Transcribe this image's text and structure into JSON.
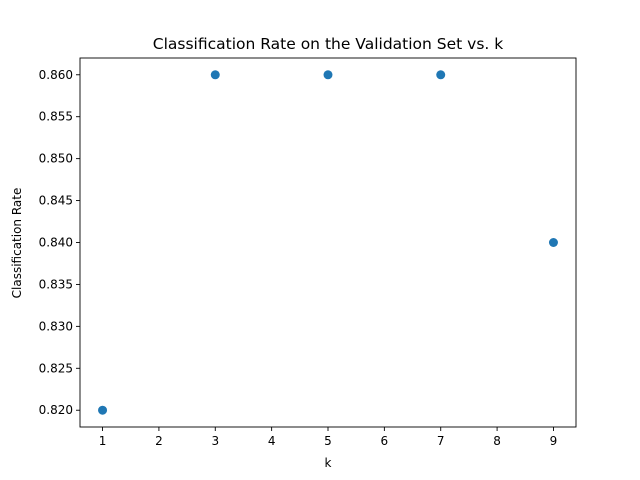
{
  "chart_data": {
    "type": "scatter",
    "title": "Classification Rate on the Validation Set vs. k",
    "xlabel": "k",
    "ylabel": "Classification Rate",
    "x": [
      1,
      3,
      5,
      7,
      9
    ],
    "y": [
      0.82,
      0.86,
      0.86,
      0.86,
      0.84
    ],
    "xlim": [
      0.6,
      9.4
    ],
    "ylim": [
      0.818,
      0.862
    ],
    "xticks": [
      1,
      2,
      3,
      4,
      5,
      6,
      7,
      8,
      9
    ],
    "xtick_labels": [
      "1",
      "2",
      "3",
      "4",
      "5",
      "6",
      "7",
      "8",
      "9"
    ],
    "yticks": [
      0.82,
      0.825,
      0.83,
      0.835,
      0.84,
      0.845,
      0.85,
      0.855,
      0.86
    ],
    "ytick_labels": [
      "0.820",
      "0.825",
      "0.830",
      "0.835",
      "0.840",
      "0.845",
      "0.850",
      "0.855",
      "0.860"
    ],
    "grid": false,
    "marker_color": "#1f77b4"
  }
}
